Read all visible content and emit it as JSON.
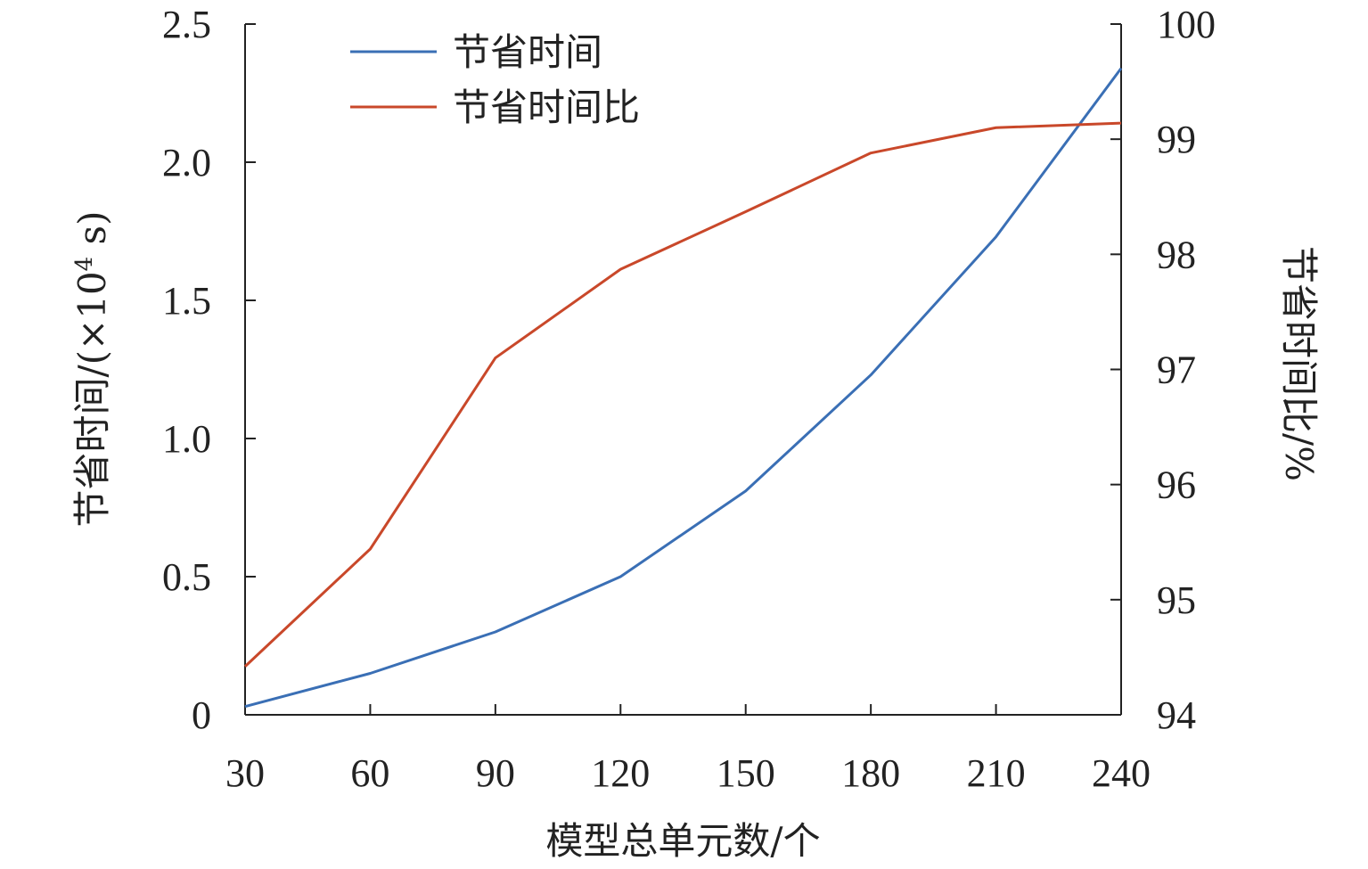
{
  "chart_data": {
    "type": "line",
    "x": [
      30,
      60,
      90,
      120,
      150,
      180,
      210,
      240
    ],
    "x_ticks": [
      "30",
      "60",
      "90",
      "120",
      "150",
      "180",
      "210",
      "240"
    ],
    "xlabel": "模型总单元数/个",
    "xlim": [
      30,
      240
    ],
    "y_left": {
      "label_main": "节省时间/(×10",
      "label_sup": "4",
      "label_end": " s)",
      "lim": [
        0,
        2.5
      ],
      "ticks": [
        "0",
        "0.5",
        "1.0",
        "1.5",
        "2.0",
        "2.5"
      ],
      "tick_values": [
        0,
        0.5,
        1.0,
        1.5,
        2.0,
        2.5
      ]
    },
    "y_right": {
      "label": "节省时间比/%",
      "lim": [
        94,
        100
      ],
      "ticks": [
        "94",
        "95",
        "96",
        "97",
        "98",
        "99",
        "100"
      ],
      "tick_values": [
        94,
        95,
        96,
        97,
        98,
        99,
        100
      ]
    },
    "series": [
      {
        "name": "节省时间",
        "axis": "left",
        "color": "#3A6FB5",
        "values": [
          0.03,
          0.15,
          0.3,
          0.5,
          0.81,
          1.23,
          1.73,
          2.34
        ]
      },
      {
        "name": "节省时间比",
        "axis": "right",
        "color": "#C9482A",
        "values": [
          94.42,
          95.44,
          97.1,
          97.87,
          98.37,
          98.88,
          99.1,
          99.14
        ]
      }
    ],
    "legend_position": "top-left",
    "grid": false
  }
}
